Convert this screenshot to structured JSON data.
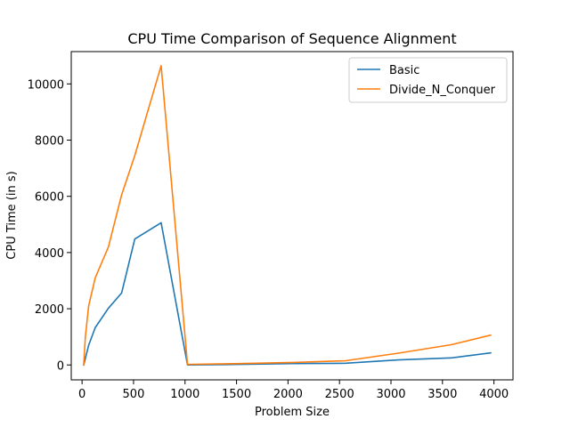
{
  "chart_data": {
    "type": "line",
    "title": "CPU Time Comparison of Sequence Alignment",
    "xlabel": "Problem Size",
    "ylabel": "CPU Time (in s)",
    "xlim": [
      -105,
      4185
    ],
    "ylim": [
      -530,
      11150
    ],
    "xticks": [
      0,
      500,
      1000,
      1500,
      2000,
      2500,
      3000,
      3500,
      4000
    ],
    "xtick_labels": [
      "0",
      "500",
      "1000",
      "1500",
      "2000",
      "2500",
      "3000",
      "3500",
      "4000"
    ],
    "yticks": [
      0,
      2000,
      4000,
      6000,
      8000,
      10000
    ],
    "ytick_labels": [
      "0",
      "2000",
      "4000",
      "6000",
      "8000",
      "10000"
    ],
    "grid": false,
    "legend_position": "top-right",
    "series": [
      {
        "name": "Basic",
        "color": "#1f77b4",
        "x": [
          16,
          64,
          128,
          256,
          384,
          512,
          768,
          1024,
          1536,
          2048,
          2560,
          3072,
          3584,
          3968
        ],
        "y": [
          0,
          700,
          1330,
          2020,
          2560,
          4480,
          5060,
          0,
          20,
          50,
          60,
          180,
          250,
          430
        ]
      },
      {
        "name": "Divide_N_Conquer",
        "color": "#ff7f0e",
        "x": [
          16,
          32,
          64,
          128,
          256,
          384,
          512,
          768,
          1024,
          1536,
          2048,
          2560,
          3072,
          3584,
          3968
        ],
        "y": [
          0,
          1000,
          2100,
          3100,
          4200,
          6050,
          7450,
          10650,
          20,
          50,
          90,
          150,
          420,
          720,
          1060
        ]
      }
    ]
  }
}
